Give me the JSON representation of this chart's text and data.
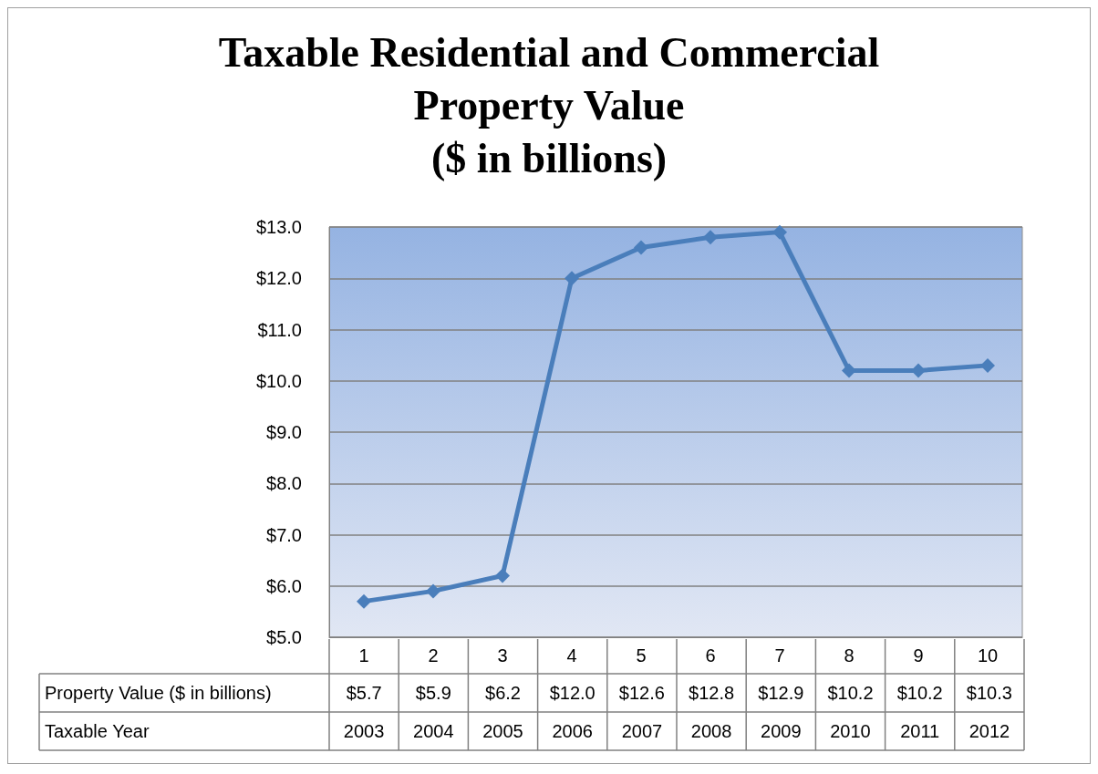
{
  "chart_data": {
    "type": "line",
    "title": "Taxable Residential and Commercial\nProperty Value\n($ in billions)",
    "categories": [
      "1",
      "2",
      "3",
      "4",
      "5",
      "6",
      "7",
      "8",
      "9",
      "10"
    ],
    "series": [
      {
        "name": "Property Value ($ in billions)",
        "color": "#4a7ebb",
        "values": [
          5.7,
          5.9,
          6.2,
          12.0,
          12.6,
          12.8,
          12.9,
          10.2,
          10.2,
          10.3
        ],
        "value_labels": [
          "$5.7",
          "$5.9",
          "$6.2",
          "$12.0",
          "$12.6",
          "$12.8",
          "$12.9",
          "$10.2",
          "$10.2",
          "$10.3"
        ]
      }
    ],
    "ylim": [
      5,
      13
    ],
    "yticks": [
      {
        "value": 5,
        "label": "$5.0"
      },
      {
        "value": 6,
        "label": "$6.0"
      },
      {
        "value": 7,
        "label": "$7.0"
      },
      {
        "value": 8,
        "label": "$8.0"
      },
      {
        "value": 9,
        "label": "$9.0"
      },
      {
        "value": 10,
        "label": "$10.0"
      },
      {
        "value": 11,
        "label": "$11.0"
      },
      {
        "value": 12,
        "label": "$12.0"
      },
      {
        "value": 13,
        "label": "$13.0"
      }
    ],
    "grid": "y",
    "legend": false,
    "marker": "diamond",
    "line_style": "solid",
    "annotations": [
      "Taxable Year",
      "2003",
      "2004",
      "2005",
      "2006",
      "2007",
      "2008",
      "2009",
      "2010",
      "2011",
      "2012"
    ]
  }
}
